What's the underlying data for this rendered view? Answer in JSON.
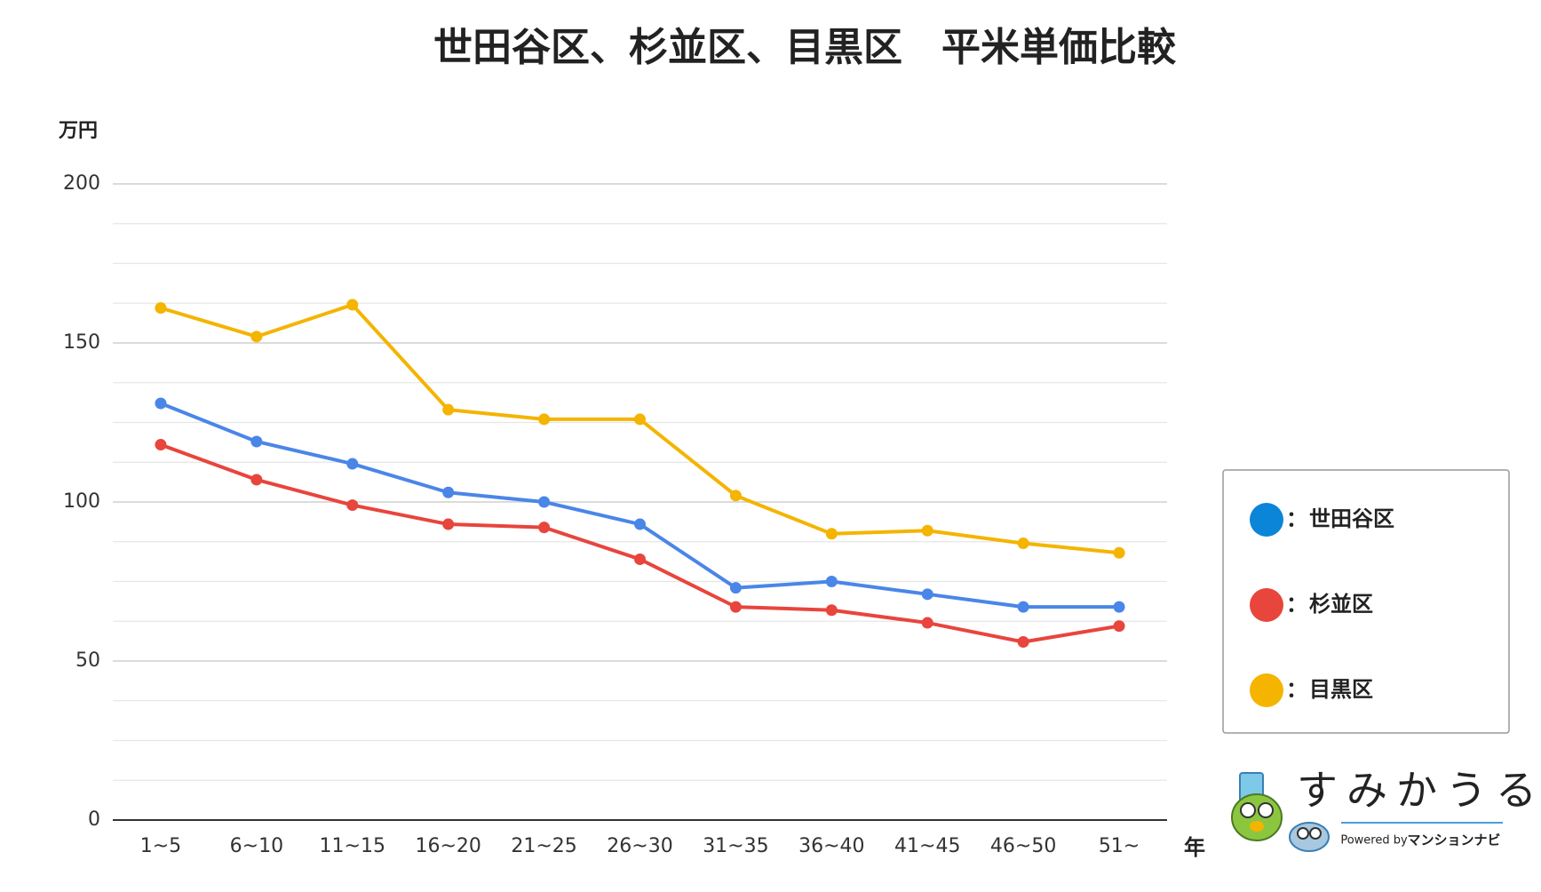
{
  "chart_data": {
    "type": "line",
    "title": "世田谷区、杉並区、目黒区　平米単価比較",
    "y_unit": "万円",
    "x_unit": "年",
    "categories": [
      "1~5",
      "6~10",
      "11~15",
      "16~20",
      "21~25",
      "26~30",
      "31~35",
      "36~40",
      "41~45",
      "46~50",
      "51~"
    ],
    "series": [
      {
        "name": "世田谷区",
        "color": "#4a86e8",
        "legend_color": "#0b85d8",
        "values": [
          131,
          119,
          112,
          103,
          100,
          93,
          73,
          75,
          71,
          67,
          67
        ]
      },
      {
        "name": "杉並区",
        "color": "#e8453c",
        "legend_color": "#e8453c",
        "values": [
          118,
          107,
          99,
          93,
          92,
          82,
          67,
          66,
          62,
          56,
          61
        ]
      },
      {
        "name": "目黒区",
        "color": "#f4b400",
        "legend_color": "#f4b400",
        "values": [
          161,
          152,
          162,
          129,
          126,
          126,
          102,
          90,
          91,
          87,
          84
        ]
      }
    ],
    "legend_separator": "：",
    "ylim": [
      0,
      200
    ],
    "yticks": [
      0,
      50,
      100,
      150,
      200
    ],
    "grid": true,
    "legend_position": "right",
    "logo": {
      "name": "すみかうる",
      "powered": "Powered by",
      "brand": "マンションナビ"
    }
  }
}
